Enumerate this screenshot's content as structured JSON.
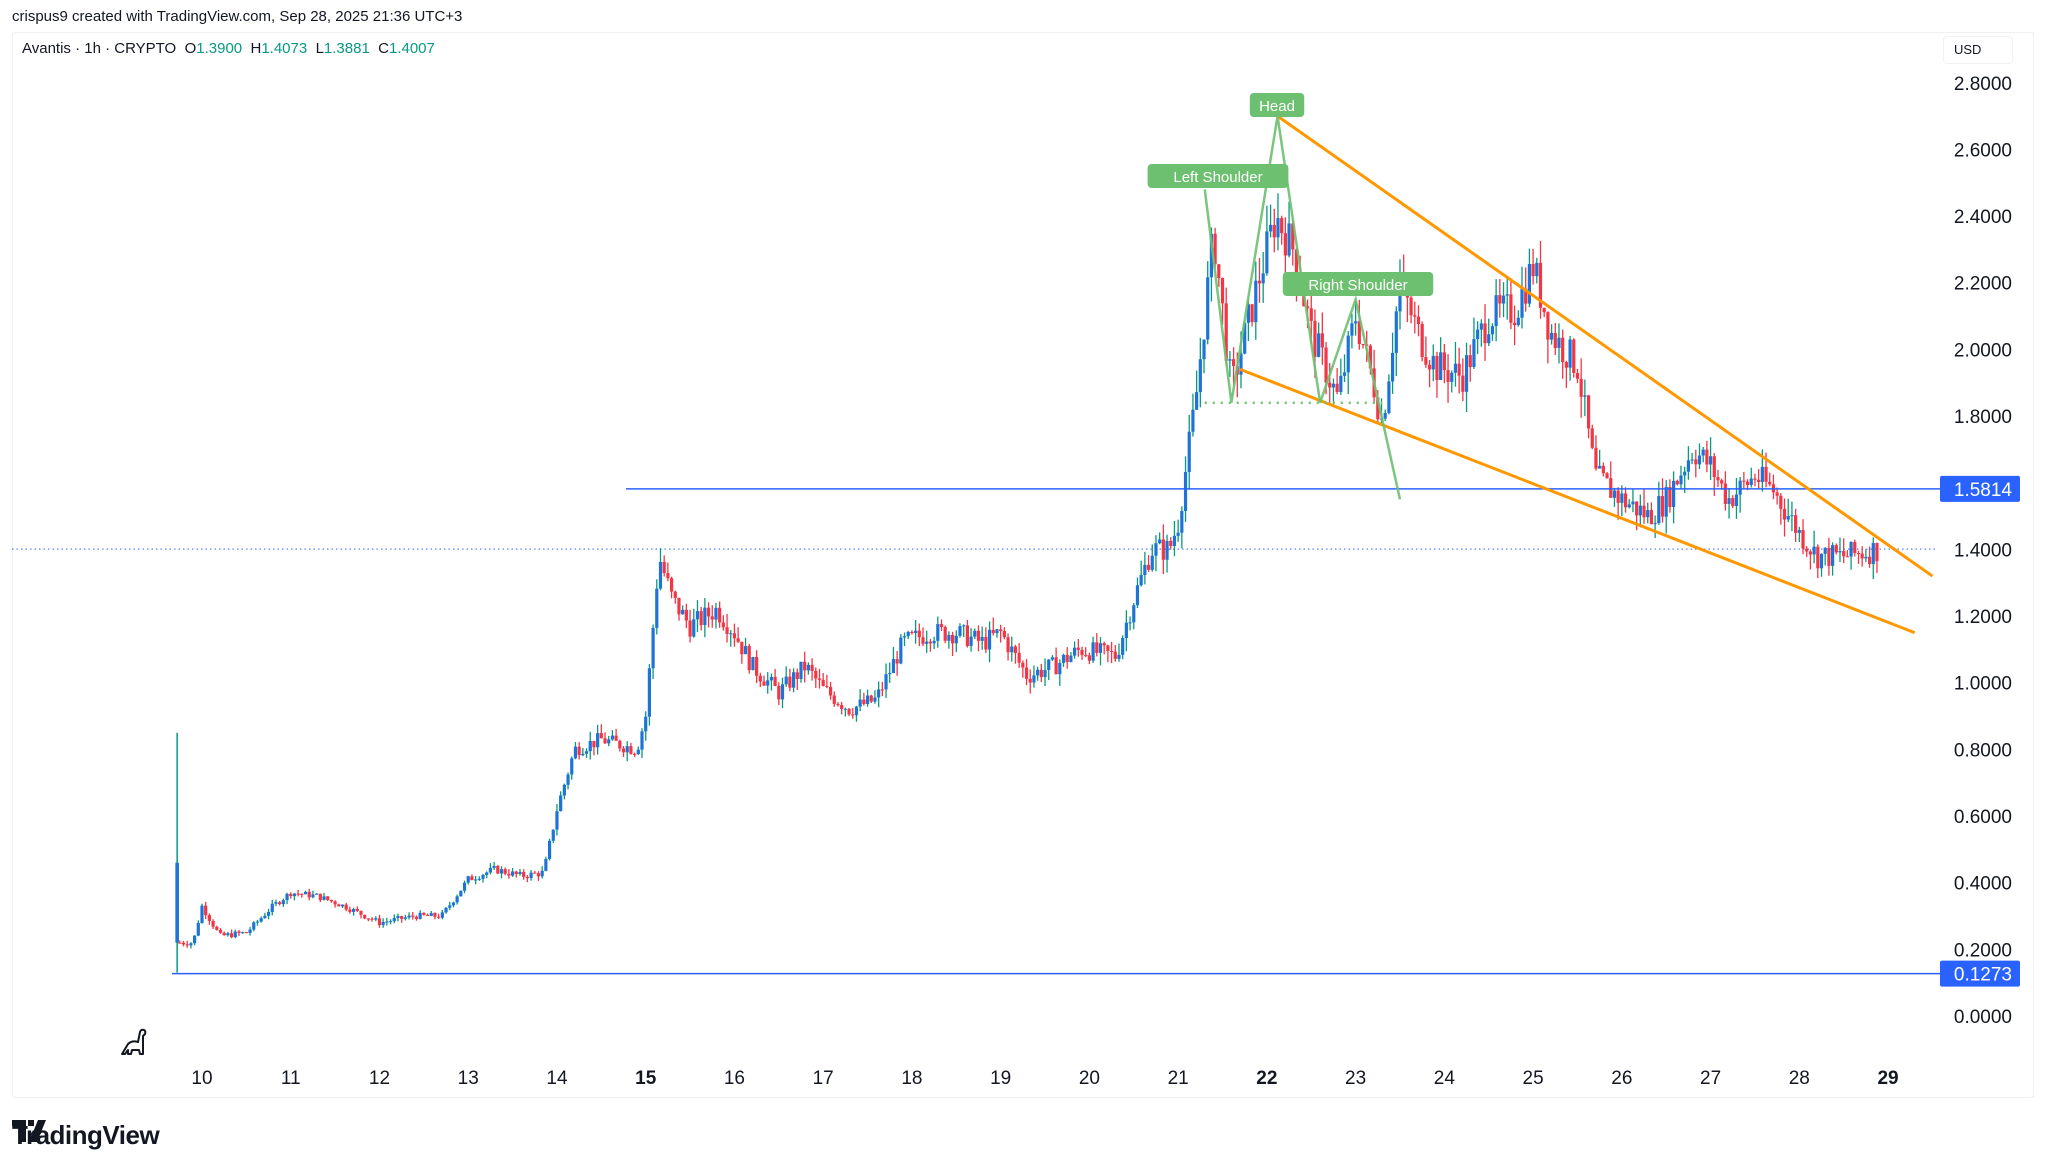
{
  "credit": "crispus9 created with TradingView.com, Sep 28, 2025 21:36 UTC+3",
  "legend": {
    "symbol": "Avantis · 1h · CRYPTO",
    "o_label": "O",
    "o": "1.3900",
    "h_label": "H",
    "h": "1.4073",
    "l_label": "L",
    "l": "1.3881",
    "c_label": "C",
    "c": "1.4007"
  },
  "currency": "USD",
  "price_axis": [
    "2.8000",
    "2.6000",
    "2.4000",
    "2.2000",
    "2.0000",
    "1.8000",
    "1.4000",
    "1.2000",
    "1.0000",
    "0.8000",
    "0.6000",
    "0.4000",
    "0.2000",
    "0.0000"
  ],
  "date_axis": [
    {
      "label": "10",
      "bold": false
    },
    {
      "label": "11",
      "bold": false
    },
    {
      "label": "12",
      "bold": false
    },
    {
      "label": "13",
      "bold": false
    },
    {
      "label": "14",
      "bold": false
    },
    {
      "label": "15",
      "bold": true
    },
    {
      "label": "16",
      "bold": false
    },
    {
      "label": "17",
      "bold": false
    },
    {
      "label": "18",
      "bold": false
    },
    {
      "label": "19",
      "bold": false
    },
    {
      "label": "20",
      "bold": false
    },
    {
      "label": "21",
      "bold": false
    },
    {
      "label": "22",
      "bold": true
    },
    {
      "label": "23",
      "bold": false
    },
    {
      "label": "24",
      "bold": false
    },
    {
      "label": "25",
      "bold": false
    },
    {
      "label": "26",
      "bold": false
    },
    {
      "label": "27",
      "bold": false
    },
    {
      "label": "28",
      "bold": false
    },
    {
      "label": "29",
      "bold": true
    }
  ],
  "levels": {
    "resistance": {
      "value": 1.5814,
      "label": "1.5814"
    },
    "support": {
      "value": 0.1273,
      "label": "0.1273"
    },
    "last_price": 1.4007
  },
  "annotations": {
    "head": "Head",
    "left_shoulder": "Left Shoulder",
    "right_shoulder": "Right Shoulder"
  },
  "colors": {
    "up_body": "#1e74d6",
    "up_wick": "#089981",
    "down": "#f23645",
    "level_line": "#2962ff",
    "wedge": "#ff9800",
    "pattern": "#6cc070"
  },
  "brand": "TradingView",
  "chart_data": {
    "type": "candlestick",
    "title": "Avantis · 1h · CRYPTO",
    "ylabel": "USD",
    "ylim": [
      0,
      2.8
    ],
    "x_ticks": [
      "10",
      "11",
      "12",
      "13",
      "14",
      "15",
      "16",
      "17",
      "18",
      "19",
      "20",
      "21",
      "22",
      "23",
      "24",
      "25",
      "26",
      "27",
      "28",
      "29"
    ],
    "path": [
      [
        9.7,
        0.45
      ],
      [
        9.75,
        0.22
      ],
      [
        9.9,
        0.22
      ],
      [
        10.0,
        0.33
      ],
      [
        10.2,
        0.24
      ],
      [
        10.5,
        0.25
      ],
      [
        10.8,
        0.33
      ],
      [
        11.0,
        0.37
      ],
      [
        11.3,
        0.36
      ],
      [
        11.6,
        0.33
      ],
      [
        12.0,
        0.28
      ],
      [
        12.4,
        0.3
      ],
      [
        12.7,
        0.3
      ],
      [
        13.0,
        0.41
      ],
      [
        13.3,
        0.44
      ],
      [
        13.6,
        0.42
      ],
      [
        13.85,
        0.43
      ],
      [
        14.0,
        0.62
      ],
      [
        14.2,
        0.8
      ],
      [
        14.5,
        0.83
      ],
      [
        14.9,
        0.8
      ],
      [
        15.0,
        0.9
      ],
      [
        15.15,
        1.38
      ],
      [
        15.3,
        1.25
      ],
      [
        15.5,
        1.17
      ],
      [
        15.8,
        1.22
      ],
      [
        16.0,
        1.15
      ],
      [
        16.2,
        1.05
      ],
      [
        16.5,
        0.97
      ],
      [
        16.8,
        1.05
      ],
      [
        17.0,
        0.98
      ],
      [
        17.3,
        0.92
      ],
      [
        17.6,
        0.95
      ],
      [
        17.9,
        1.12
      ],
      [
        18.2,
        1.15
      ],
      [
        18.5,
        1.15
      ],
      [
        18.8,
        1.12
      ],
      [
        19.0,
        1.15
      ],
      [
        19.3,
        1.02
      ],
      [
        19.6,
        1.05
      ],
      [
        19.9,
        1.1
      ],
      [
        20.3,
        1.08
      ],
      [
        20.5,
        1.25
      ],
      [
        20.7,
        1.4
      ],
      [
        20.9,
        1.4
      ],
      [
        21.0,
        1.48
      ],
      [
        21.2,
        1.85
      ],
      [
        21.4,
        2.35
      ],
      [
        21.6,
        1.88
      ],
      [
        21.9,
        2.2
      ],
      [
        22.1,
        2.4
      ],
      [
        22.3,
        2.3
      ],
      [
        22.5,
        2.05
      ],
      [
        22.8,
        1.85
      ],
      [
        23.0,
        2.1
      ],
      [
        23.2,
        1.9
      ],
      [
        23.3,
        1.78
      ],
      [
        23.5,
        2.2
      ],
      [
        23.7,
        2.05
      ],
      [
        23.9,
        1.95
      ],
      [
        24.2,
        1.92
      ],
      [
        24.5,
        2.1
      ],
      [
        24.8,
        2.12
      ],
      [
        25.0,
        2.25
      ],
      [
        25.2,
        2.05
      ],
      [
        25.5,
        1.95
      ],
      [
        25.7,
        1.62
      ],
      [
        26.0,
        1.55
      ],
      [
        26.3,
        1.5
      ],
      [
        26.5,
        1.55
      ],
      [
        26.8,
        1.7
      ],
      [
        27.0,
        1.65
      ],
      [
        27.2,
        1.55
      ],
      [
        27.5,
        1.62
      ],
      [
        27.7,
        1.58
      ],
      [
        28.0,
        1.45
      ],
      [
        28.2,
        1.38
      ],
      [
        28.5,
        1.38
      ],
      [
        28.9,
        1.4
      ]
    ],
    "overlays": {
      "horizontal_levels": [
        1.5814,
        0.1273
      ],
      "falling_wedge_upper": [
        [
          22.12,
          2.7
        ],
        [
          29.5,
          1.32
        ]
      ],
      "falling_wedge_lower": [
        [
          21.7,
          1.94
        ],
        [
          29.3,
          1.15
        ]
      ],
      "head_and_shoulders": [
        [
          21.3,
          2.48
        ],
        [
          21.6,
          1.84
        ],
        [
          22.12,
          2.7
        ],
        [
          22.6,
          1.84
        ],
        [
          23.0,
          2.15
        ],
        [
          23.5,
          1.55
        ]
      ],
      "neckline": [
        [
          21.3,
          1.84
        ],
        [
          23.3,
          1.84
        ]
      ]
    }
  }
}
